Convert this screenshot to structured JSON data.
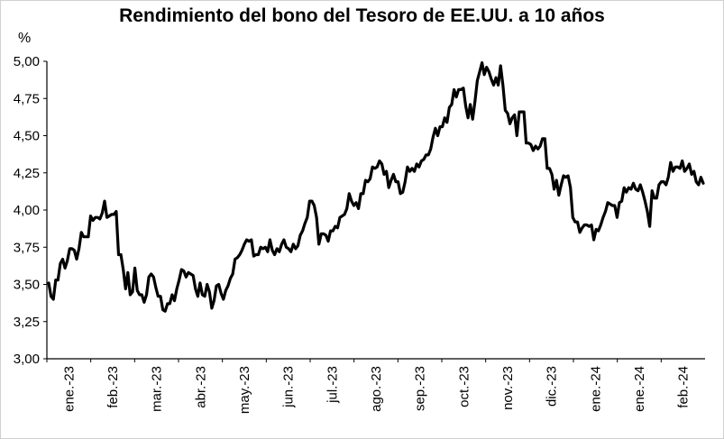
{
  "chart_data": {
    "type": "line",
    "title": "Rendimiento del bono del Tesoro de EE.UU. a 10 años",
    "ylabel": "%",
    "ylim": [
      3.0,
      5.0
    ],
    "yticks": [
      "3,00",
      "3,25",
      "3,50",
      "3,75",
      "4,00",
      "4,25",
      "4,50",
      "4,75",
      "5,00"
    ],
    "x_tick_labels": [
      "ene.-23",
      "feb.-23",
      "mar.-23",
      "abr.-23",
      "may.-23",
      "jun.-23",
      "jul.-23",
      "ago.-23",
      "sep.-23",
      "oct.-23",
      "nov.-23",
      "dic.-23",
      "ene.-24",
      "ene.-24",
      "feb.-24"
    ],
    "grid": false,
    "series": [
      {
        "color": "#000000",
        "values": [
          3.51,
          3.42,
          3.4,
          3.53,
          3.53,
          3.64,
          3.67,
          3.61,
          3.66,
          3.74,
          3.74,
          3.73,
          3.67,
          3.74,
          3.85,
          3.82,
          3.82,
          3.82,
          3.96,
          3.93,
          3.95,
          3.95,
          3.94,
          3.98,
          4.06,
          3.95,
          3.96,
          3.97,
          3.97,
          3.99,
          3.7,
          3.7,
          3.6,
          3.47,
          3.58,
          3.43,
          3.45,
          3.61,
          3.46,
          3.43,
          3.43,
          3.38,
          3.43,
          3.55,
          3.57,
          3.55,
          3.48,
          3.42,
          3.42,
          3.33,
          3.32,
          3.37,
          3.37,
          3.43,
          3.39,
          3.47,
          3.53,
          3.6,
          3.59,
          3.55,
          3.58,
          3.57,
          3.56,
          3.47,
          3.42,
          3.51,
          3.43,
          3.42,
          3.5,
          3.45,
          3.34,
          3.39,
          3.49,
          3.5,
          3.44,
          3.4,
          3.46,
          3.49,
          3.54,
          3.57,
          3.67,
          3.68,
          3.7,
          3.73,
          3.77,
          3.8,
          3.79,
          3.8,
          3.69,
          3.7,
          3.7,
          3.75,
          3.74,
          3.75,
          3.72,
          3.8,
          3.73,
          3.7,
          3.74,
          3.72,
          3.77,
          3.8,
          3.75,
          3.74,
          3.72,
          3.77,
          3.74,
          3.76,
          3.83,
          3.86,
          3.91,
          3.95,
          4.06,
          4.06,
          4.03,
          3.95,
          3.77,
          3.84,
          3.84,
          3.83,
          3.79,
          3.86,
          3.86,
          3.89,
          3.88,
          3.95,
          3.96,
          3.97,
          4.01,
          4.11,
          4.06,
          4.03,
          4.05,
          4.01,
          4.11,
          4.11,
          4.2,
          4.19,
          4.21,
          4.29,
          4.28,
          4.29,
          4.33,
          4.31,
          4.24,
          4.26,
          4.15,
          4.2,
          4.24,
          4.19,
          4.19,
          4.11,
          4.12,
          4.19,
          4.29,
          4.26,
          4.28,
          4.26,
          4.31,
          4.29,
          4.33,
          4.34,
          4.37,
          4.37,
          4.41,
          4.49,
          4.55,
          4.5,
          4.56,
          4.56,
          4.62,
          4.59,
          4.69,
          4.71,
          4.81,
          4.76,
          4.81,
          4.81,
          4.82,
          4.7,
          4.62,
          4.71,
          4.61,
          4.73,
          4.87,
          4.93,
          4.99,
          4.91,
          4.96,
          4.93,
          4.88,
          4.84,
          4.89,
          4.84,
          4.97,
          4.84,
          4.67,
          4.65,
          4.58,
          4.62,
          4.64,
          4.5,
          4.66,
          4.66,
          4.66,
          4.45,
          4.45,
          4.44,
          4.4,
          4.43,
          4.41,
          4.43,
          4.48,
          4.48,
          4.28,
          4.28,
          4.24,
          4.14,
          4.2,
          4.1,
          4.17,
          4.23,
          4.22,
          4.23,
          4.15,
          3.95,
          3.92,
          3.92,
          3.85,
          3.88,
          3.9,
          3.9,
          3.89,
          3.9,
          3.8,
          3.87,
          3.86,
          3.9,
          3.95,
          3.99,
          4.05,
          4.04,
          4.03,
          4.03,
          3.95,
          4.05,
          4.06,
          4.15,
          4.12,
          4.15,
          4.14,
          4.18,
          4.14,
          4.13,
          4.17,
          4.12,
          4.06,
          3.99,
          3.89,
          4.13,
          4.08,
          4.08,
          4.17,
          4.19,
          4.19,
          4.17,
          4.22,
          4.32,
          4.26,
          4.29,
          4.29,
          4.28,
          4.33,
          4.26,
          4.28,
          4.31,
          4.24,
          4.26,
          4.19,
          4.17,
          4.22,
          4.18
        ]
      }
    ]
  }
}
